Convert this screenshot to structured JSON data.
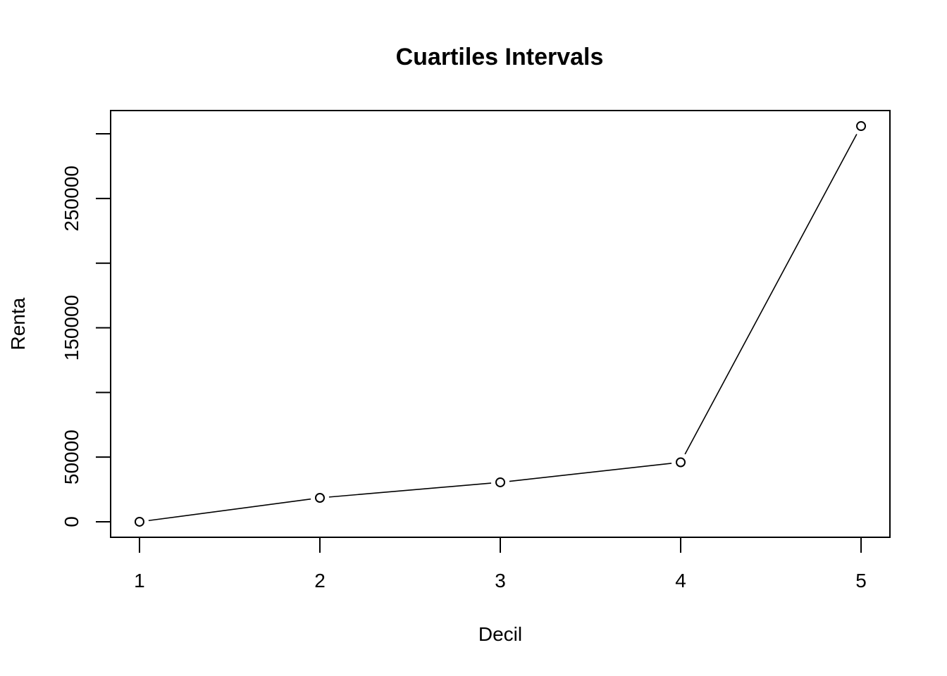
{
  "chart_data": {
    "type": "line",
    "title": "Cuartiles Intervals",
    "xlabel": "Decil",
    "ylabel": "Renta",
    "x": [
      1,
      2,
      3,
      4,
      5
    ],
    "y": [
      0,
      18500,
      30500,
      46000,
      306000
    ],
    "xlim": [
      0.84,
      5.16
    ],
    "ylim": [
      -12000,
      318000
    ],
    "x_ticks": [
      "1",
      "2",
      "3",
      "4",
      "5"
    ],
    "y_ticks": [
      0,
      50000,
      100000,
      150000,
      200000,
      250000,
      300000
    ],
    "y_tick_labels": [
      "0",
      "50000",
      "",
      "150000",
      "",
      "250000",
      ""
    ],
    "grid": false,
    "marker": "open-circle",
    "line_color": "#000000"
  }
}
